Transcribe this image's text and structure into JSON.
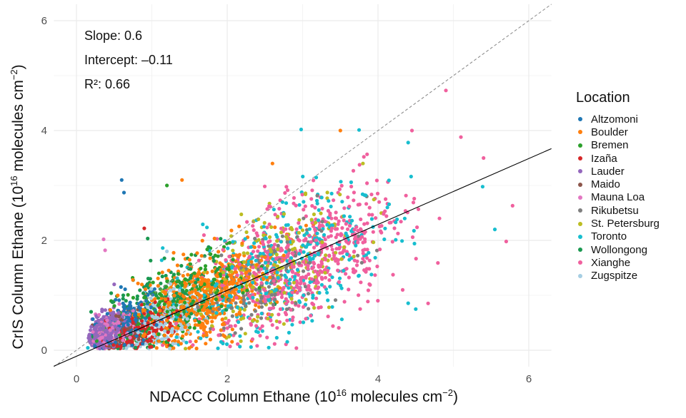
{
  "chart_data": {
    "type": "scatter",
    "xlabel": {
      "main": "NDACC Column Ethane (10",
      "sup1": "16",
      "mid": " molecules cm",
      "sup2": "−2",
      "end": ")"
    },
    "ylabel": {
      "main": "CrIS Column Ethane (10",
      "sup1": "16",
      "mid": " molecules cm",
      "sup2": "−2",
      "end": ")"
    },
    "xlim": [
      -0.3,
      6.3
    ],
    "ylim": [
      -0.3,
      6.3
    ],
    "xticks": [
      0,
      2,
      4,
      6
    ],
    "yticks": [
      0,
      2,
      4,
      6
    ],
    "grid": true,
    "annotations": {
      "slope": "Slope: 0.6",
      "intercept": "Intercept: –0.11",
      "r2": "R²: 0.66"
    },
    "regression": {
      "slope": 0.6,
      "intercept": -0.11,
      "color": "#000000"
    },
    "identity_line": {
      "slope": 1,
      "intercept": 0,
      "style": "dashed",
      "color": "#888888"
    },
    "legend_title": "Location",
    "legend_position": "right",
    "series": [
      {
        "name": "Altzomoni",
        "color": "#1f77b4",
        "n": 180,
        "x_mean": 0.7,
        "x_sd": 0.2,
        "y_mean": 0.55,
        "y_sd": 0.25,
        "outliers": [
          [
            0.6,
            3.1
          ],
          [
            0.63,
            2.87
          ]
        ]
      },
      {
        "name": "Boulder",
        "color": "#ff7f0e",
        "n": 550,
        "x_mean": 1.7,
        "x_sd": 0.45,
        "y_mean": 0.95,
        "y_sd": 0.38,
        "outliers": [
          [
            3.5,
            4.0
          ],
          [
            1.4,
            3.1
          ],
          [
            2.6,
            3.4
          ]
        ]
      },
      {
        "name": "Bremen",
        "color": "#2ca02c",
        "n": 200,
        "x_mean": 1.4,
        "x_sd": 0.45,
        "y_mean": 0.9,
        "y_sd": 0.35,
        "outliers": [
          [
            1.2,
            3.0
          ]
        ]
      },
      {
        "name": "Izaña",
        "color": "#d62728",
        "n": 220,
        "x_mean": 0.85,
        "x_sd": 0.22,
        "y_mean": 0.35,
        "y_sd": 0.18,
        "outliers": [
          [
            0.9,
            2.22
          ]
        ]
      },
      {
        "name": "Lauder",
        "color": "#9467bd",
        "n": 380,
        "x_mean": 0.38,
        "x_sd": 0.1,
        "y_mean": 0.35,
        "y_sd": 0.14,
        "outliers": [
          [
            0.5,
            1.2
          ]
        ]
      },
      {
        "name": "Maido",
        "color": "#8c564b",
        "n": 60,
        "x_mean": 0.6,
        "x_sd": 0.15,
        "y_mean": 0.35,
        "y_sd": 0.2,
        "outliers": []
      },
      {
        "name": "Mauna Loa",
        "color": "#e377c2",
        "n": 200,
        "x_mean": 0.45,
        "x_sd": 0.12,
        "y_mean": 0.35,
        "y_sd": 0.15,
        "outliers": [
          [
            0.36,
            2.02
          ],
          [
            0.38,
            1.82
          ]
        ]
      },
      {
        "name": "Rikubetsu",
        "color": "#7f7f7f",
        "n": 150,
        "x_mean": 2.5,
        "x_sd": 0.5,
        "y_mean": 1.3,
        "y_sd": 0.45,
        "outliers": [
          [
            3.85,
            2.8
          ]
        ]
      },
      {
        "name": "St. Petersburg",
        "color": "#bcbd22",
        "n": 200,
        "x_mean": 2.6,
        "x_sd": 0.55,
        "y_mean": 1.45,
        "y_sd": 0.5,
        "outliers": [
          [
            3.8,
            3.4
          ]
        ]
      },
      {
        "name": "Toronto",
        "color": "#17becf",
        "n": 350,
        "x_mean": 2.7,
        "x_sd": 0.75,
        "y_mean": 1.45,
        "y_sd": 0.6,
        "outliers": [
          [
            2.98,
            4.02
          ],
          [
            5.55,
            2.2
          ],
          [
            4.5,
            0.75
          ],
          [
            4.4,
            3.78
          ]
        ]
      },
      {
        "name": "Wollongong",
        "color": "#1a9850",
        "n": 200,
        "x_mean": 1.2,
        "x_sd": 0.45,
        "y_mean": 0.85,
        "y_sd": 0.35,
        "outliers": []
      },
      {
        "name": "Xianghe",
        "color": "#f0609e",
        "n": 650,
        "x_mean": 3.0,
        "x_sd": 0.65,
        "y_mean": 1.6,
        "y_sd": 0.55,
        "outliers": [
          [
            4.9,
            4.73
          ],
          [
            5.1,
            3.88
          ],
          [
            5.7,
            1.98
          ],
          [
            5.4,
            3.5
          ],
          [
            4.45,
            4.0
          ]
        ]
      },
      {
        "name": "Zugspitze",
        "color": "#a6cee3",
        "n": 200,
        "x_mean": 1.15,
        "x_sd": 0.25,
        "y_mean": 0.55,
        "y_sd": 0.25,
        "outliers": [
          [
            1.2,
            1.8
          ]
        ]
      }
    ]
  }
}
